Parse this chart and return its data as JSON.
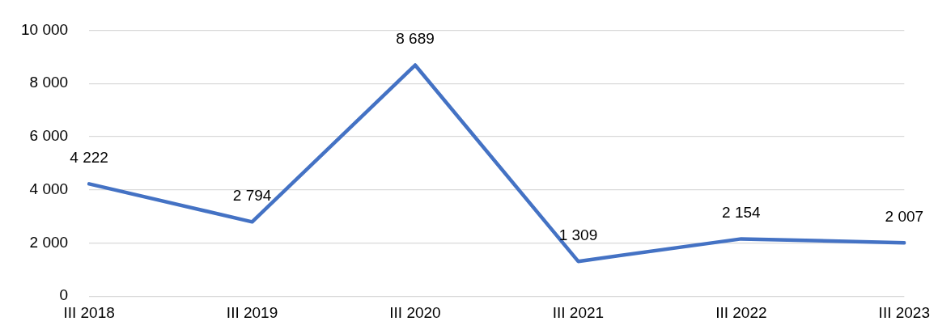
{
  "chart_data": {
    "type": "line",
    "categories": [
      "III 2018",
      "III 2019",
      "III 2020",
      "III 2021",
      "III 2022",
      "III 2023"
    ],
    "series": [
      {
        "color": "#4472c4",
        "values": [
          4222,
          2794,
          8689,
          1309,
          2154,
          2007
        ],
        "value_labels": [
          "4 222",
          "2 794",
          "8 689",
          "1 309",
          "2 154",
          "2 007"
        ]
      }
    ],
    "ylim": [
      0,
      10000
    ],
    "yticks": [
      {
        "value": 0,
        "label": "0"
      },
      {
        "value": 2000,
        "label": "2 000"
      },
      {
        "value": 4000,
        "label": "4 000"
      },
      {
        "value": 6000,
        "label": "6 000"
      },
      {
        "value": 8000,
        "label": "8 000"
      },
      {
        "value": 10000,
        "label": "10 000"
      }
    ],
    "grid": "y",
    "legend": false,
    "marker": "none",
    "line_style": "solid"
  }
}
